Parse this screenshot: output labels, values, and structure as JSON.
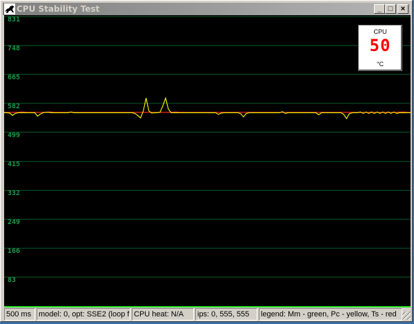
{
  "window": {
    "title": "CPU Stability Test",
    "icon": "horse-app-icon"
  },
  "title_buttons": [
    {
      "name": "minimize",
      "glyph": "_"
    },
    {
      "name": "maximize",
      "glyph": "□"
    },
    {
      "name": "close",
      "glyph": "×"
    }
  ],
  "temperature": {
    "label": "CPU",
    "value": "50",
    "unit": "°C",
    "value_color": "#ff0000"
  },
  "status": {
    "interval": "500 ms",
    "model": "model: 0, opt: SSE2 (loop form",
    "heat": "CPU heat: N/A",
    "ips": "ips: 0, 555, 555",
    "legend": "legend: Mm - green, Pc - yellow, Ts - red"
  },
  "chart_data": {
    "type": "line",
    "ylim": [
      0,
      831
    ],
    "yticks": [
      "831",
      "748",
      "665",
      "582",
      "499",
      "415",
      "332",
      "249",
      "166",
      "83"
    ],
    "ytick_values": [
      831,
      748,
      665,
      582,
      499,
      415,
      332,
      249,
      166,
      83
    ],
    "grid": true,
    "grid_color": "#0b5e2c",
    "axis_color": "#22dd22",
    "background": "#000000",
    "series": [
      {
        "name": "Ts",
        "color": "#ff2020",
        "values": [
          556,
          556,
          556,
          556,
          556,
          556,
          557,
          557,
          556,
          556,
          556,
          556,
          556,
          556,
          556,
          556,
          557,
          557,
          556,
          556,
          556,
          556,
          556,
          556,
          557,
          556,
          556,
          556,
          556,
          556,
          556,
          556,
          556,
          556,
          556,
          556,
          556,
          556,
          556,
          556,
          556,
          556,
          556,
          556,
          556,
          556,
          556,
          556,
          556,
          556,
          556,
          556,
          556,
          556,
          556,
          556,
          556,
          556,
          556,
          556,
          556,
          557,
          557,
          556,
          556,
          556,
          556,
          556,
          556,
          556,
          556,
          556,
          556,
          556,
          556,
          556,
          556,
          556,
          556,
          556,
          556,
          556,
          556,
          556,
          556,
          556,
          556,
          556,
          556,
          556,
          556,
          556,
          556,
          556,
          556,
          556,
          556,
          556,
          556,
          556,
          556,
          556,
          556,
          556,
          556,
          556,
          556,
          556,
          556,
          556,
          556,
          556,
          556,
          556,
          556,
          556,
          556,
          556,
          556,
          556,
          556,
          556,
          556,
          556,
          556,
          556,
          556,
          556,
          556,
          556,
          556,
          556,
          556,
          556,
          556,
          556,
          556,
          556,
          556,
          556,
          556,
          556,
          557,
          557,
          557,
          556,
          556
        ]
      },
      {
        "name": "Pc",
        "color": "#f0f000",
        "values": [
          555,
          555,
          554,
          547,
          553,
          555,
          555,
          555,
          555,
          555,
          555,
          555,
          545,
          551,
          555,
          556,
          556,
          555,
          555,
          555,
          555,
          555,
          555,
          555,
          557,
          555,
          555,
          555,
          555,
          555,
          555,
          555,
          555,
          555,
          555,
          555,
          555,
          555,
          555,
          555,
          555,
          555,
          555,
          555,
          555,
          555,
          555,
          553,
          547,
          540,
          560,
          597,
          560,
          554,
          555,
          555,
          556,
          575,
          597,
          565,
          555,
          555,
          555,
          555,
          555,
          555,
          555,
          555,
          555,
          555,
          555,
          555,
          555,
          555,
          555,
          555,
          555,
          550,
          554,
          555,
          555,
          555,
          555,
          555,
          555,
          552,
          543,
          553,
          555,
          555,
          555,
          555,
          555,
          555,
          555,
          555,
          555,
          555,
          555,
          555,
          558,
          553,
          555,
          555,
          555,
          555,
          555,
          555,
          555,
          555,
          555,
          555,
          555,
          549,
          555,
          555,
          555,
          555,
          555,
          555,
          555,
          555,
          550,
          538,
          552,
          555,
          555,
          555,
          557,
          553,
          557,
          553,
          557,
          553,
          557,
          553,
          557,
          553,
          557,
          553,
          557,
          553,
          555,
          555,
          555,
          555,
          555
        ]
      }
    ]
  }
}
